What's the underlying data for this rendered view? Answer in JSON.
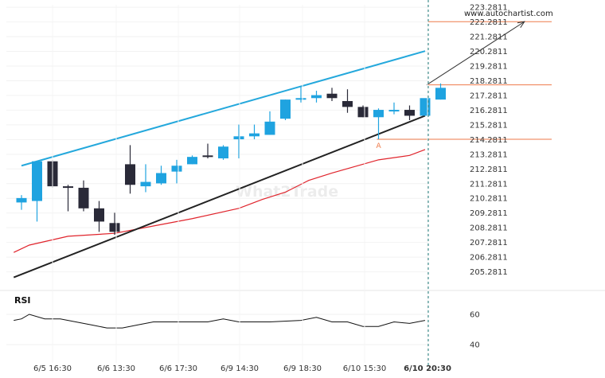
{
  "source_label": "www.autochartist.com",
  "watermark": "What2Trade",
  "point_label": "A",
  "rsi_label": "RSI",
  "colors": {
    "bull": "#1fa3e0",
    "bear": "#2a2a38",
    "upper_line": "#24a8dc",
    "lower_line": "#222222",
    "ma_line": "#e0242c",
    "level_line": "#ee7a4a",
    "arrow": "#333333",
    "rsi_line": "#111111",
    "time_line": "#1c7a78"
  },
  "chart_data": {
    "type": "candlestick",
    "y_ticks": [
      "223.2811",
      "222.2811",
      "221.2811",
      "220.2811",
      "219.2811",
      "218.2811",
      "217.2811",
      "216.2811",
      "215.2811",
      "214.2811",
      "213.2811",
      "212.2811",
      "211.2811",
      "210.2811",
      "209.2811",
      "208.2811",
      "207.2811",
      "206.2811",
      "205.2811"
    ],
    "x_ticks": [
      "6/5 16:30",
      "6/6 13:30",
      "6/6 17:30",
      "6/9 14:30",
      "6/9 18:30",
      "6/10 15:30",
      "6/10 20:30"
    ],
    "ylim": [
      204.5,
      223.45
    ],
    "candles": [
      {
        "o": 210.0,
        "h": 210.5,
        "l": 209.5,
        "c": 210.3
      },
      {
        "o": 210.1,
        "h": 212.7,
        "l": 208.7,
        "c": 212.8
      },
      {
        "o": 212.8,
        "h": 212.9,
        "l": 211.0,
        "c": 211.1
      },
      {
        "o": 211.1,
        "h": 211.2,
        "l": 209.4,
        "c": 211.0
      },
      {
        "o": 211.0,
        "h": 211.5,
        "l": 209.4,
        "c": 209.6
      },
      {
        "o": 209.6,
        "h": 210.1,
        "l": 208.0,
        "c": 208.7
      },
      {
        "o": 208.6,
        "h": 209.3,
        "l": 207.8,
        "c": 208.0
      },
      {
        "o": 212.6,
        "h": 213.9,
        "l": 210.6,
        "c": 211.2
      },
      {
        "o": 211.1,
        "h": 212.6,
        "l": 210.7,
        "c": 211.4
      },
      {
        "o": 211.3,
        "h": 212.5,
        "l": 211.2,
        "c": 212.0
      },
      {
        "o": 212.1,
        "h": 212.9,
        "l": 211.3,
        "c": 212.5
      },
      {
        "o": 212.6,
        "h": 213.2,
        "l": 212.6,
        "c": 213.1
      },
      {
        "o": 213.2,
        "h": 214.0,
        "l": 213.0,
        "c": 213.1
      },
      {
        "o": 213.0,
        "h": 213.9,
        "l": 212.9,
        "c": 213.8
      },
      {
        "o": 214.3,
        "h": 215.3,
        "l": 213.0,
        "c": 214.5
      },
      {
        "o": 214.5,
        "h": 215.3,
        "l": 214.3,
        "c": 214.7
      },
      {
        "o": 214.6,
        "h": 216.2,
        "l": 214.6,
        "c": 215.5
      },
      {
        "o": 215.7,
        "h": 217.0,
        "l": 215.6,
        "c": 217.0
      },
      {
        "o": 217.0,
        "h": 217.9,
        "l": 216.8,
        "c": 217.1
      },
      {
        "o": 217.1,
        "h": 217.6,
        "l": 216.8,
        "c": 217.3
      },
      {
        "o": 217.4,
        "h": 217.8,
        "l": 216.9,
        "c": 217.1
      },
      {
        "o": 216.9,
        "h": 217.7,
        "l": 216.1,
        "c": 216.5
      },
      {
        "o": 216.5,
        "h": 216.6,
        "l": 215.8,
        "c": 215.8
      },
      {
        "o": 215.8,
        "h": 216.4,
        "l": 214.3,
        "c": 216.3
      },
      {
        "o": 216.2,
        "h": 216.8,
        "l": 216.0,
        "c": 216.3
      },
      {
        "o": 216.3,
        "h": 216.6,
        "l": 215.6,
        "c": 215.9
      },
      {
        "o": 215.9,
        "h": 217.0,
        "l": 215.9,
        "c": 217.1
      },
      {
        "o": 217.0,
        "h": 218.1,
        "l": 217.0,
        "c": 217.8
      }
    ],
    "upper_trendline": [
      [
        0,
        212.5
      ],
      [
        26,
        220.3
      ]
    ],
    "lower_trendline": [
      [
        -0.5,
        204.9
      ],
      [
        26,
        215.9
      ]
    ],
    "moving_average": [
      [
        -0.5,
        206.6
      ],
      [
        0.5,
        207.1
      ],
      [
        3,
        207.7
      ],
      [
        6,
        207.9
      ],
      [
        9,
        208.5
      ],
      [
        11,
        208.9
      ],
      [
        14,
        209.6
      ],
      [
        15.5,
        210.2
      ],
      [
        17,
        210.7
      ],
      [
        18.5,
        211.5
      ],
      [
        20,
        212.0
      ],
      [
        23,
        212.9
      ],
      [
        25,
        213.2
      ],
      [
        26,
        213.6
      ]
    ],
    "level_lines": [
      218.0,
      214.3,
      222.3
    ],
    "point_a": {
      "x": 23,
      "y": 214.3
    },
    "projection": {
      "from": [
        26,
        218.0
      ],
      "to": [
        32.4,
        222.3
      ]
    },
    "rsi": {
      "ticks": [
        60,
        40
      ],
      "ylim": [
        30,
        70
      ],
      "values": [
        [
          -0.5,
          56
        ],
        [
          0,
          57
        ],
        [
          0.5,
          60
        ],
        [
          1.5,
          57
        ],
        [
          2.5,
          57
        ],
        [
          3.5,
          55
        ],
        [
          4.5,
          53
        ],
        [
          5.5,
          51
        ],
        [
          6.5,
          51
        ],
        [
          7.5,
          53
        ],
        [
          8.5,
          55
        ],
        [
          10,
          55
        ],
        [
          12,
          55
        ],
        [
          13,
          57
        ],
        [
          14,
          55
        ],
        [
          16,
          55
        ],
        [
          18,
          56
        ],
        [
          19,
          58
        ],
        [
          20,
          55
        ],
        [
          21,
          55
        ],
        [
          22,
          52
        ],
        [
          23,
          52
        ],
        [
          24,
          55
        ],
        [
          25,
          54
        ],
        [
          26,
          56
        ]
      ]
    }
  }
}
